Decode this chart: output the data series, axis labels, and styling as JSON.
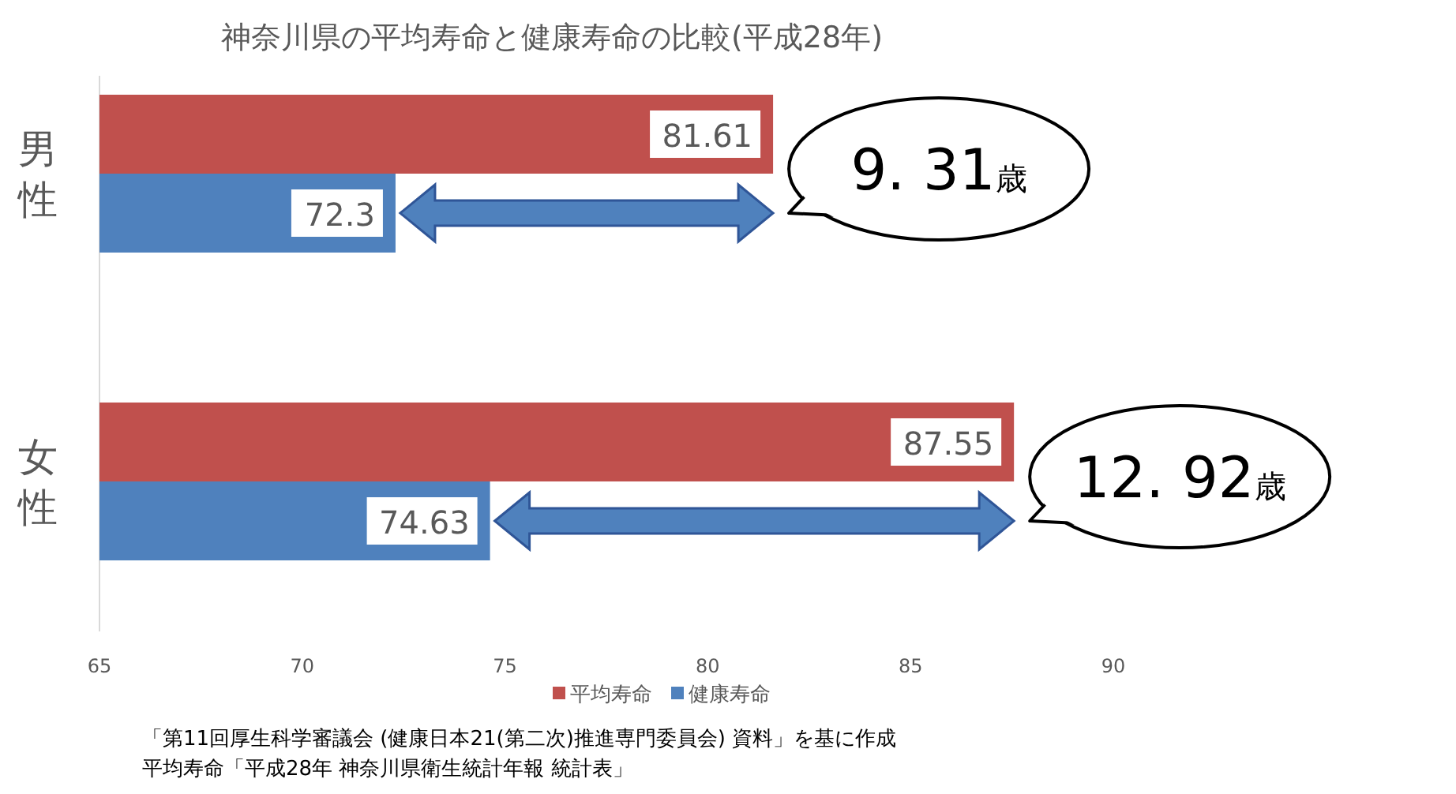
{
  "chart_data": {
    "type": "bar",
    "orientation": "horizontal",
    "title": "神奈川県の平均寿命と健康寿命の比較(平成28年)",
    "categories": [
      "男性",
      "女性"
    ],
    "series": [
      {
        "name": "平均寿命",
        "color": "#c0504d",
        "values": [
          81.61,
          87.55
        ]
      },
      {
        "name": "健康寿命",
        "color": "#4f81bd",
        "values": [
          72.3,
          74.63
        ]
      }
    ],
    "xlim": [
      65,
      90
    ],
    "xticks": [
      65,
      70,
      75,
      80,
      85,
      90
    ],
    "grid": false,
    "legend": "bottom",
    "data_labels": true,
    "annotations": [
      {
        "text": "9. 31歳",
        "x": 81.61,
        "y": "男性"
      },
      {
        "text": "12. 92歳",
        "x": 87.55,
        "y": "女性"
      },
      "「第11回厚生科学審議会 (健康日本21(第二次)推進専門委員会)  資料」を基に作成",
      "平均寿命「平成28年  神奈川県衛生統計年報  統計表」"
    ]
  }
}
